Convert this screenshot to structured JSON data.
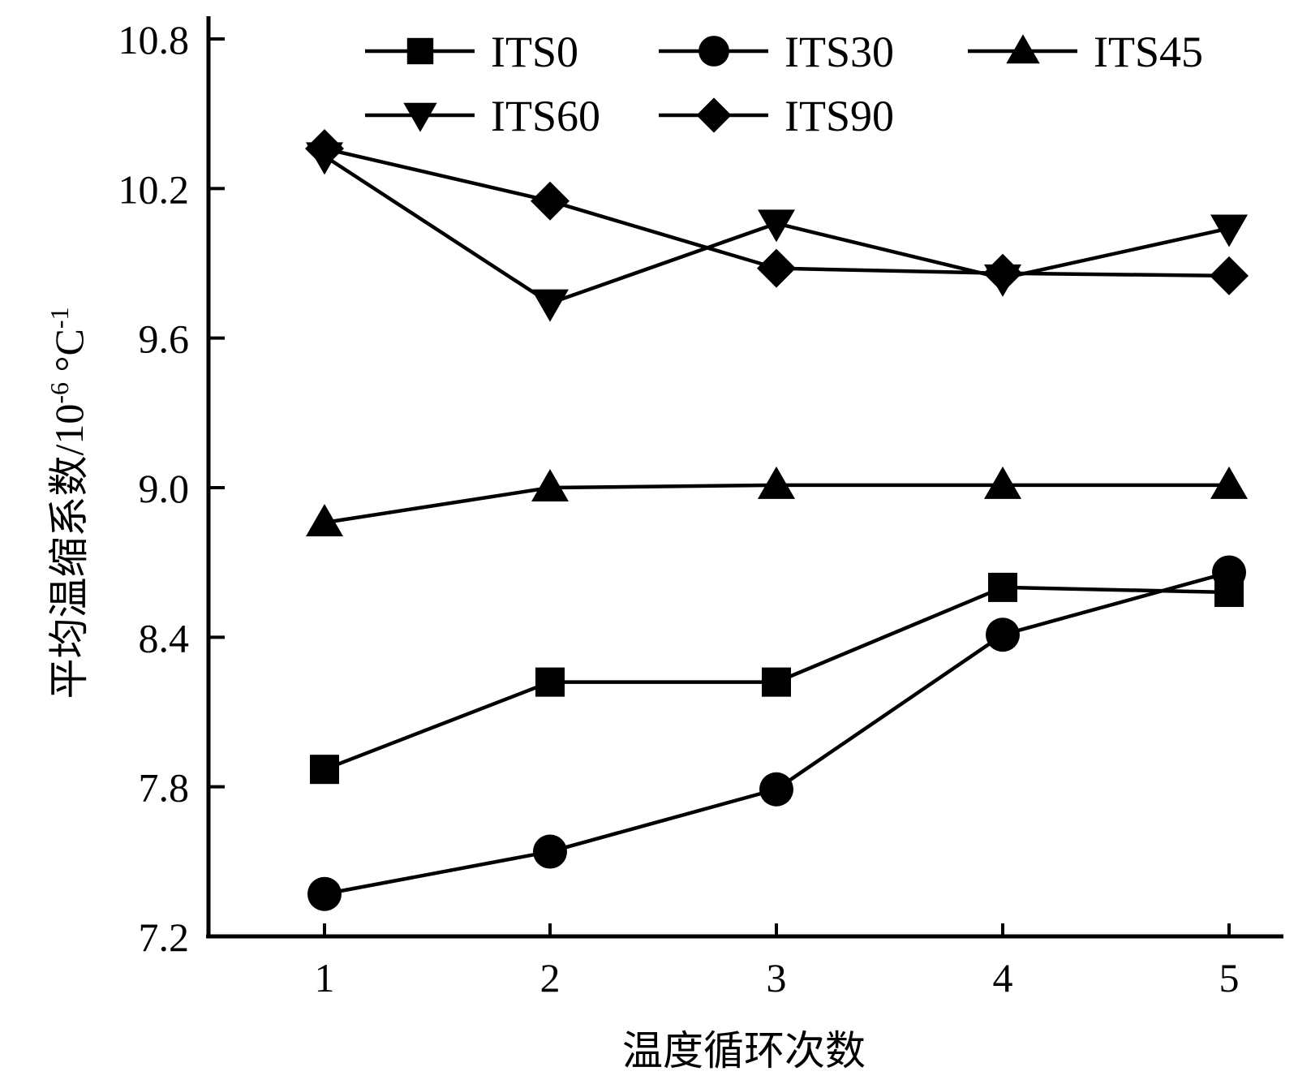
{
  "chart_data": {
    "type": "line",
    "xlabel": "温度循环次数",
    "ylabel": "平均温缩系数/10",
    "ylabel_exp1": "-6",
    "ylabel_unit": " °C",
    "ylabel_exp2": "-1",
    "x": [
      1,
      2,
      3,
      4,
      5
    ],
    "x_tick_labels": [
      "1",
      "2",
      "3",
      "4",
      "5"
    ],
    "ylim": [
      7.2,
      10.8
    ],
    "y_ticks": [
      7.2,
      7.8,
      8.4,
      9.0,
      9.6,
      10.2,
      10.8
    ],
    "y_tick_labels": [
      "7.2",
      "7.8",
      "8.4",
      "9.0",
      "9.6",
      "10.2",
      "10.8"
    ],
    "grid": false,
    "legend_placement": "top",
    "series": [
      {
        "name": "ITS0",
        "marker": "square",
        "values": [
          7.87,
          8.22,
          8.22,
          8.6,
          8.58
        ]
      },
      {
        "name": "ITS30",
        "marker": "circle",
        "values": [
          7.37,
          7.54,
          7.79,
          8.41,
          8.66
        ]
      },
      {
        "name": "ITS45",
        "marker": "triangle-up",
        "values": [
          8.86,
          9.0,
          9.01,
          9.01,
          9.01
        ]
      },
      {
        "name": "ITS60",
        "marker": "triangle-down",
        "values": [
          10.33,
          9.74,
          10.06,
          9.84,
          10.04
        ]
      },
      {
        "name": "ITS90",
        "marker": "diamond",
        "values": [
          10.36,
          10.15,
          9.88,
          9.86,
          9.85
        ]
      }
    ],
    "colors": {
      "line": "#000000",
      "marker": "#000000",
      "background": "#ffffff"
    }
  }
}
